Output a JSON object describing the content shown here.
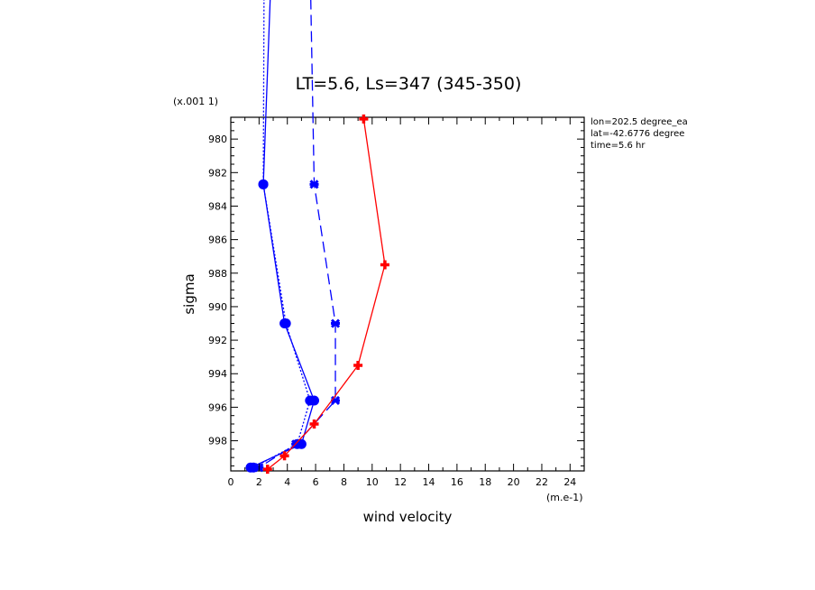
{
  "chart_data": {
    "type": "line",
    "title": "LT=5.6, Ls=347 (345-350)",
    "xlabel": "wind velocity",
    "ylabel": "sigma",
    "x_unit_label": "(m.e-1)",
    "y_scale_label": "(x.001 1)",
    "xlim": [
      0,
      25
    ],
    "ylim": [
      999.8,
      978.7
    ],
    "x_ticks": [
      0,
      2,
      4,
      6,
      8,
      10,
      12,
      14,
      16,
      18,
      20,
      22,
      24
    ],
    "y_ticks": [
      980,
      982,
      984,
      986,
      988,
      990,
      992,
      994,
      996,
      998
    ],
    "info_lines": [
      "lon=202.5 degree_ea",
      "lat=-42.6776 degree",
      "time=5.6 hr"
    ],
    "series": [
      {
        "style": "solid",
        "color": "#0000ff",
        "marker": "circle",
        "points": [
          [
            3.3,
            960.0
          ],
          [
            2.3,
            982.7
          ],
          [
            3.8,
            991.0
          ],
          [
            5.9,
            995.6
          ],
          [
            5.0,
            998.2
          ],
          [
            1.4,
            999.6
          ]
        ]
      },
      {
        "style": "dotted",
        "color": "#0000ff",
        "marker": "circle",
        "points": [
          [
            2.4,
            960.0
          ],
          [
            2.3,
            982.7
          ],
          [
            3.9,
            991.0
          ],
          [
            5.6,
            995.6
          ],
          [
            4.7,
            998.2
          ],
          [
            1.6,
            999.6
          ]
        ]
      },
      {
        "style": "dashed",
        "color": "#0000ff",
        "marker": "cross",
        "points": [
          [
            5.4,
            960.0
          ],
          [
            5.9,
            982.7
          ],
          [
            7.4,
            991.0
          ],
          [
            7.4,
            995.6
          ],
          [
            4.6,
            998.2
          ],
          [
            2.0,
            999.6
          ]
        ]
      },
      {
        "style": "solid",
        "color": "#ff0000",
        "marker": "plus",
        "points": [
          [
            9.4,
            978.8
          ],
          [
            10.9,
            987.5
          ],
          [
            9.0,
            993.5
          ],
          [
            5.9,
            997.0
          ],
          [
            3.8,
            998.9
          ],
          [
            2.6,
            999.7
          ]
        ]
      }
    ]
  }
}
